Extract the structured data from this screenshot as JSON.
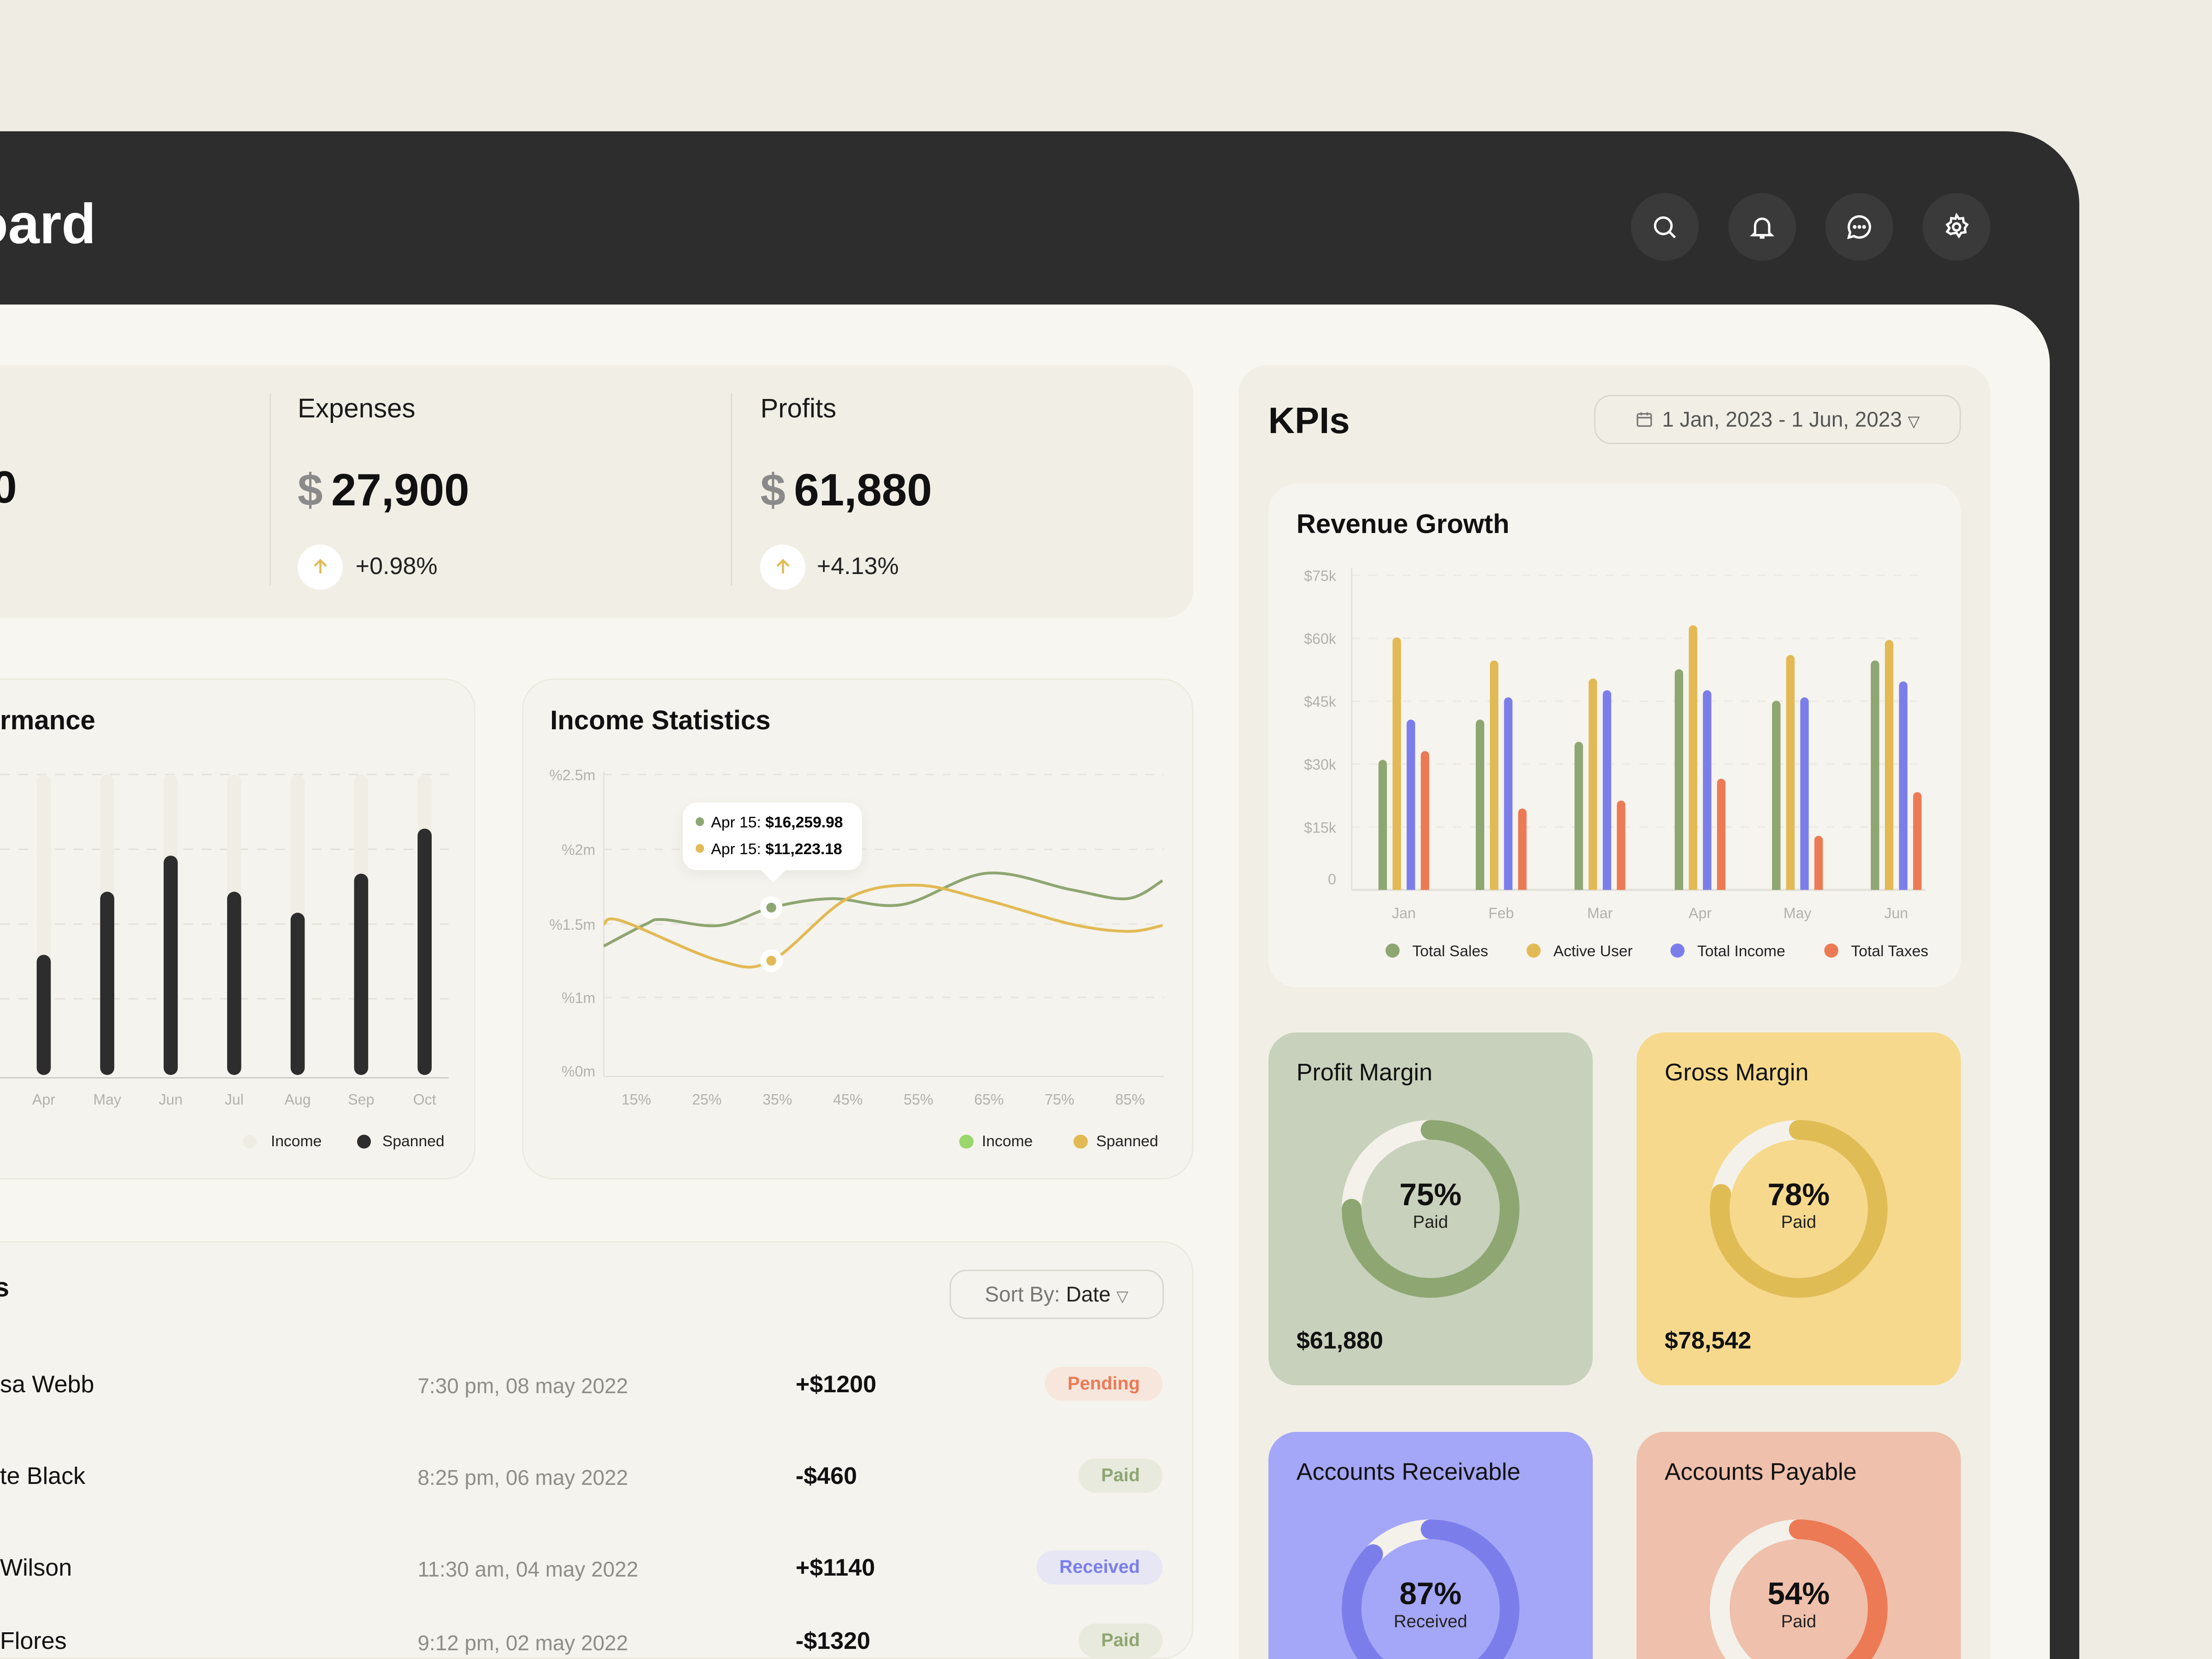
{
  "header": {
    "title": "Dashboard",
    "title_visible": "oard",
    "icons": [
      "search-icon",
      "bell-icon",
      "chat-icon",
      "gear-icon"
    ]
  },
  "stats": [
    {
      "label": "",
      "value": "0",
      "change": ""
    },
    {
      "label": "Expenses",
      "currency": "$",
      "value": "27,900",
      "change": "+0.98%"
    },
    {
      "label": "Profits",
      "currency": "$",
      "value": "61,880",
      "change": "+4.13%"
    }
  ],
  "performance": {
    "title": "rmance",
    "chart_data": {
      "type": "bar",
      "categories": [
        "Apr",
        "May",
        "Jun",
        "Jul",
        "Aug",
        "Sep",
        "Oct"
      ],
      "series": [
        {
          "name": "Income",
          "values": [
            1,
            1,
            1,
            1,
            1,
            1,
            1
          ]
        },
        {
          "name": "Spanned",
          "values": [
            0.4,
            0.61,
            0.73,
            0.61,
            0.54,
            0.67,
            0.82
          ]
        }
      ],
      "grid": true,
      "colors": {
        "Income": "#efede3",
        "Spanned": "#2d2d2d"
      }
    },
    "legend": [
      "Income",
      "Spanned"
    ]
  },
  "income_statistics": {
    "title": "Income Statistics",
    "chart_data": {
      "type": "line",
      "x_ticks": [
        "15%",
        "25%",
        "35%",
        "45%",
        "55%",
        "65%",
        "75%",
        "85%"
      ],
      "y_ticks": [
        "%0m",
        "%1m",
        "%1.5m",
        "%2m",
        "%2.5m"
      ],
      "y_tick_values": [
        0,
        1,
        1.5,
        2,
        2.5
      ],
      "xlim": [
        10.4,
        90
      ],
      "series": [
        {
          "name": "Income",
          "color": "#8ea672",
          "x": [
            10.4,
            16.4,
            18.8,
            26.8,
            34.2,
            42.8,
            52.8,
            64.8,
            76.8,
            84.8,
            89.8
          ],
          "y": [
            1.35,
            1.5,
            1.53,
            1.49,
            1.61,
            1.67,
            1.63,
            1.84,
            1.73,
            1.67,
            1.79
          ]
        },
        {
          "name": "Spanned",
          "color": "#e2b954",
          "x": [
            10.4,
            13,
            26.8,
            34.2,
            45,
            54.8,
            64.8,
            76.8,
            84.8,
            89.8
          ],
          "y": [
            1.5,
            1.52,
            1.25,
            1.25,
            1.67,
            1.76,
            1.66,
            1.5,
            1.45,
            1.49
          ]
        }
      ],
      "highlight_x": 34.2,
      "tooltip": [
        {
          "label": "Apr 15:",
          "value": "$16,259.98"
        },
        {
          "label": "Apr 15:",
          "value": "$11,223.18"
        }
      ],
      "grid": true
    },
    "legend": [
      {
        "name": "Income",
        "color": "#9ad66b"
      },
      {
        "name": "Spanned",
        "color": "#e2b954"
      }
    ]
  },
  "transactions": {
    "title": "s",
    "sort_label": "Sort By:",
    "sort_value": "Date",
    "rows": [
      {
        "name": "sa Webb",
        "date": "7:30 pm, 08 may 2022",
        "amount": "+$1200",
        "status": "Pending"
      },
      {
        "name": "te Black",
        "date": "8:25 pm, 06 may 2022",
        "amount": "-$460",
        "status": "Paid"
      },
      {
        "name": " Wilson",
        "date": "11:30 am, 04 may 2022",
        "amount": "+$1140",
        "status": "Received"
      },
      {
        "name": "Flores",
        "date": "9:12 pm, 02 may 2022",
        "amount": "-$1320",
        "status": "Paid"
      }
    ],
    "status_colors": {
      "Pending": [
        "#f6e6dc",
        "#ec7a55"
      ],
      "Paid": [
        "#e8eadd",
        "#8ea672"
      ],
      "Received": [
        "#e6e6f5",
        "#7b7eea"
      ]
    }
  },
  "kpis": {
    "title": "KPIs",
    "date_range": "1 Jan, 2023 - 1 Jun, 2023",
    "revenue_growth": {
      "title": "Revenue Growth",
      "chart_data": {
        "type": "bar",
        "categories": [
          "Jan",
          "Feb",
          "Mar",
          "Apr",
          "May",
          "Jun"
        ],
        "y_ticks": [
          "0",
          "$15k",
          "$30k",
          "$45k",
          "$60k",
          "$75k"
        ],
        "ylim": [
          0,
          75
        ],
        "grid": true,
        "legend_placement": "bottom",
        "series": [
          {
            "name": "Total Sales",
            "color": "#8ea672",
            "values": [
              31,
              40.6,
              35.3,
              52.6,
              45.1,
              54.7
            ]
          },
          {
            "name": "Active User",
            "color": "#e2b954",
            "values": [
              60.2,
              54.7,
              50.4,
              63.1,
              56,
              59.6
            ]
          },
          {
            "name": "Total Income",
            "color": "#7b7eea",
            "values": [
              40.6,
              45.9,
              47.6,
              47.6,
              45.9,
              49.7
            ]
          },
          {
            "name": "Total Taxes",
            "color": "#ec7a55",
            "values": [
              33.1,
              19.4,
              21.3,
              26.5,
              12.9,
              23.3
            ]
          }
        ]
      }
    },
    "cards": [
      {
        "title": "Profit Margin",
        "percent": 75,
        "percent_label": "75%",
        "sub": "Paid",
        "value": "$61,880",
        "bg": "#c7d1bb",
        "ring": "#8ea672"
      },
      {
        "title": "Gross Margin",
        "percent": 78,
        "percent_label": "78%",
        "sub": "Paid",
        "value": "$78,542",
        "bg": "#f6d98c",
        "ring": "#e0bc55"
      },
      {
        "title": "Accounts Receivable",
        "percent": 87,
        "percent_label": "87%",
        "sub": "Received",
        "value": "",
        "bg": "#a4a6f7",
        "ring": "#7b7eea"
      },
      {
        "title": "Accounts Payable",
        "percent": 54,
        "percent_label": "54%",
        "sub": "Paid",
        "value": "",
        "bg": "#efc0ab",
        "ring": "#ec7a55"
      }
    ]
  }
}
